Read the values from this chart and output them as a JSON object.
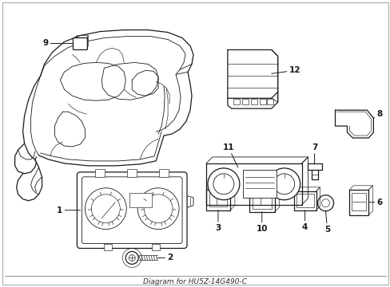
{
  "bg_color": "#ffffff",
  "line_color": "#1a1a1a",
  "fig_width": 4.89,
  "fig_height": 3.6,
  "dpi": 100,
  "label_fontsize": 7.5,
  "lw_main": 0.9,
  "lw_detail": 0.6,
  "lw_thin": 0.45
}
